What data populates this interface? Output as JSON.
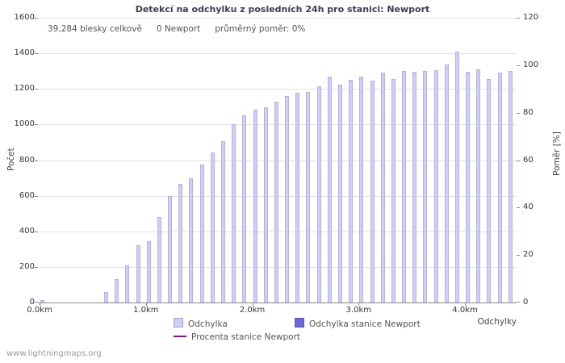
{
  "stats": {
    "total": "39,284 blesky celkově",
    "station": "0 Newport",
    "ratio": "průměrný poměr: 0%"
  },
  "watermark": "www.lightningmaps.org",
  "chart_data": {
    "type": "bar",
    "title": "Detekcí na odchylku z posledních 24h pro stanici: Newport",
    "xlabel": "Odchylky",
    "ylabel": "Počet",
    "y2label": "Poměr [%]",
    "ylim": [
      0,
      1600
    ],
    "ytick_step": 200,
    "y2lim": [
      0,
      120
    ],
    "y2tick_step": 20,
    "xlim_km": [
      0,
      4.5
    ],
    "bar_width_km": 0.1,
    "grid": true,
    "legend_position": "bottom",
    "xticks": [
      {
        "pos_km": 0,
        "label": "0.0km"
      },
      {
        "pos_km": 1,
        "label": "1.0km"
      },
      {
        "pos_km": 2,
        "label": "2.0km"
      },
      {
        "pos_km": 3,
        "label": "3.0km"
      },
      {
        "pos_km": 4,
        "label": "4.0km"
      }
    ],
    "series": [
      {
        "name": "Odchylka",
        "type": "bar",
        "color": "#cfcff4",
        "points": [
          [
            0,
            15
          ],
          [
            0.6,
            60
          ],
          [
            0.7,
            130
          ],
          [
            0.8,
            210
          ],
          [
            0.9,
            320
          ],
          [
            1.0,
            345
          ],
          [
            1.1,
            480
          ],
          [
            1.2,
            600
          ],
          [
            1.3,
            665
          ],
          [
            1.4,
            700
          ],
          [
            1.5,
            775
          ],
          [
            1.6,
            845
          ],
          [
            1.7,
            905
          ],
          [
            1.8,
            1000
          ],
          [
            1.9,
            1050
          ],
          [
            2.0,
            1085
          ],
          [
            2.1,
            1095
          ],
          [
            2.2,
            1130
          ],
          [
            2.3,
            1160
          ],
          [
            2.4,
            1180
          ],
          [
            2.5,
            1185
          ],
          [
            2.6,
            1215
          ],
          [
            2.7,
            1270
          ],
          [
            2.8,
            1225
          ],
          [
            2.9,
            1250
          ],
          [
            3.0,
            1270
          ],
          [
            3.1,
            1245
          ],
          [
            3.2,
            1290
          ],
          [
            3.3,
            1255
          ],
          [
            3.4,
            1300
          ],
          [
            3.5,
            1295
          ],
          [
            3.6,
            1300
          ],
          [
            3.7,
            1305
          ],
          [
            3.8,
            1335
          ],
          [
            3.9,
            1410
          ],
          [
            4.0,
            1295
          ],
          [
            4.1,
            1310
          ],
          [
            4.2,
            1255
          ],
          [
            4.3,
            1290
          ],
          [
            4.4,
            1300
          ]
        ]
      },
      {
        "name": "Odchylka stanice Newport",
        "type": "bar",
        "color": "#6a6ad9",
        "points": []
      },
      {
        "name": "Procenta stanice Newport",
        "type": "line",
        "color": "#990099",
        "points": []
      }
    ]
  }
}
